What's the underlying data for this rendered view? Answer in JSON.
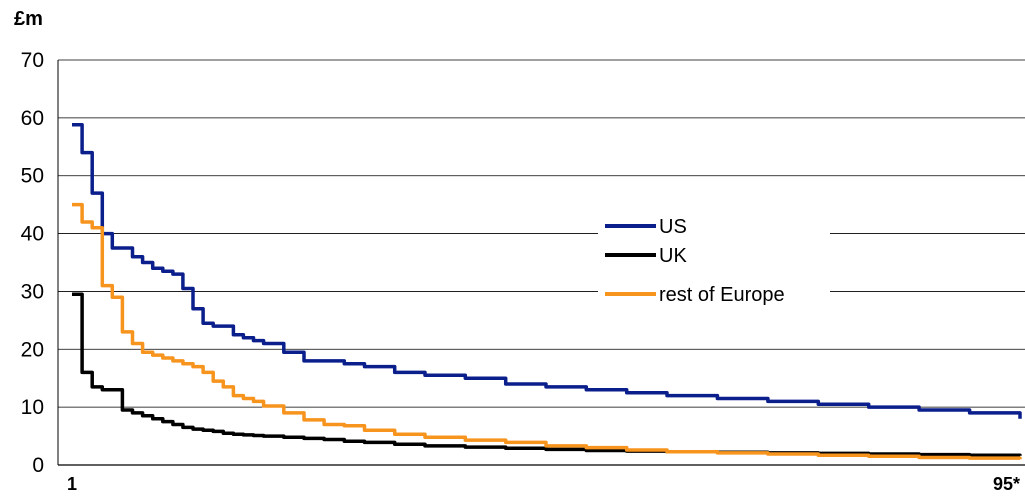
{
  "chart_data": {
    "type": "line",
    "title": "",
    "ylabel": "£m",
    "xlabel": "",
    "xlim": [
      1,
      95
    ],
    "ylim": [
      0,
      70
    ],
    "yticks": [
      0,
      10,
      20,
      30,
      40,
      50,
      60,
      70
    ],
    "x_tick_labels": [
      {
        "x": 1,
        "label": "1"
      },
      {
        "x": 95,
        "label": "95*"
      }
    ],
    "grid": "horizontal",
    "legend_position": "center-right",
    "x": [
      1,
      2,
      3,
      4,
      5,
      6,
      7,
      8,
      9,
      10,
      11,
      12,
      13,
      14,
      15,
      16,
      17,
      18,
      19,
      20,
      22,
      24,
      26,
      28,
      30,
      33,
      36,
      40,
      44,
      48,
      52,
      56,
      60,
      65,
      70,
      75,
      80,
      85,
      90,
      95
    ],
    "series": [
      {
        "name": "US",
        "color": "#0b1f8c",
        "values": [
          58.8,
          54,
          47,
          40,
          37.5,
          37.5,
          36,
          35,
          34,
          33.5,
          33,
          30.5,
          27,
          24.5,
          24,
          24,
          22.5,
          22,
          21.5,
          21,
          19.5,
          18,
          18,
          17.5,
          17,
          16,
          15.5,
          15,
          14,
          13.5,
          13,
          12.5,
          12,
          11.5,
          11,
          10.5,
          10,
          9.5,
          9,
          8
        ]
      },
      {
        "name": "UK",
        "color": "#000000",
        "values": [
          29.5,
          16,
          13.5,
          13,
          13,
          9.5,
          9,
          8.5,
          8,
          7.5,
          7,
          6.5,
          6.2,
          6,
          5.8,
          5.5,
          5.3,
          5.2,
          5.1,
          5.0,
          4.8,
          4.6,
          4.4,
          4.1,
          3.9,
          3.6,
          3.3,
          3.1,
          2.9,
          2.7,
          2.5,
          2.4,
          2.3,
          2.2,
          2.1,
          2.0,
          1.9,
          1.8,
          1.7,
          1.6
        ]
      },
      {
        "name": "rest of Europe",
        "color": "#f7941d",
        "values": [
          45,
          42,
          41,
          31,
          29,
          23,
          21,
          19.5,
          19,
          18.5,
          18,
          17.5,
          17,
          16,
          14.5,
          13.5,
          12,
          11.5,
          11,
          10.2,
          9,
          7.8,
          7,
          6.8,
          6,
          5.3,
          4.8,
          4.3,
          3.9,
          3.3,
          3.0,
          2.6,
          2.3,
          2.1,
          1.9,
          1.7,
          1.5,
          1.3,
          1.2,
          1.0
        ]
      }
    ]
  }
}
